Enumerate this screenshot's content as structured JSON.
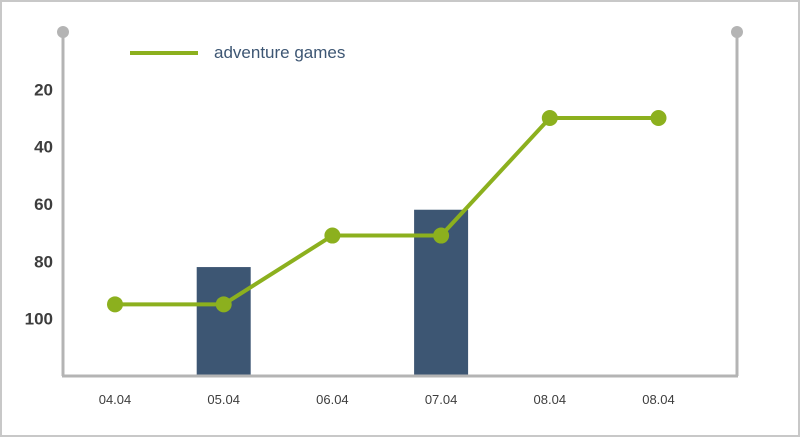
{
  "chart_data": {
    "type": "bar",
    "categories": [
      "04.04",
      "05.04",
      "06.04",
      "07.04",
      "08.04",
      "08.04"
    ],
    "y_tick_labels": [
      "20",
      "40",
      "60",
      "80",
      "100"
    ],
    "ylim": [
      0,
      120
    ],
    "y_axis_reversed": true,
    "grid": false,
    "legend_position": "top-left",
    "bar_series": {
      "values": [
        null,
        82,
        null,
        62,
        null,
        null
      ],
      "color": "#3d5673"
    },
    "line_series": {
      "name": "adventure games",
      "values": [
        95,
        95,
        71,
        71,
        30,
        30
      ],
      "color": "#8cb01e"
    },
    "axis_color": "#b4b4b4",
    "text_color": "#3d3d3d",
    "legend_text_color": "#3d5673"
  }
}
